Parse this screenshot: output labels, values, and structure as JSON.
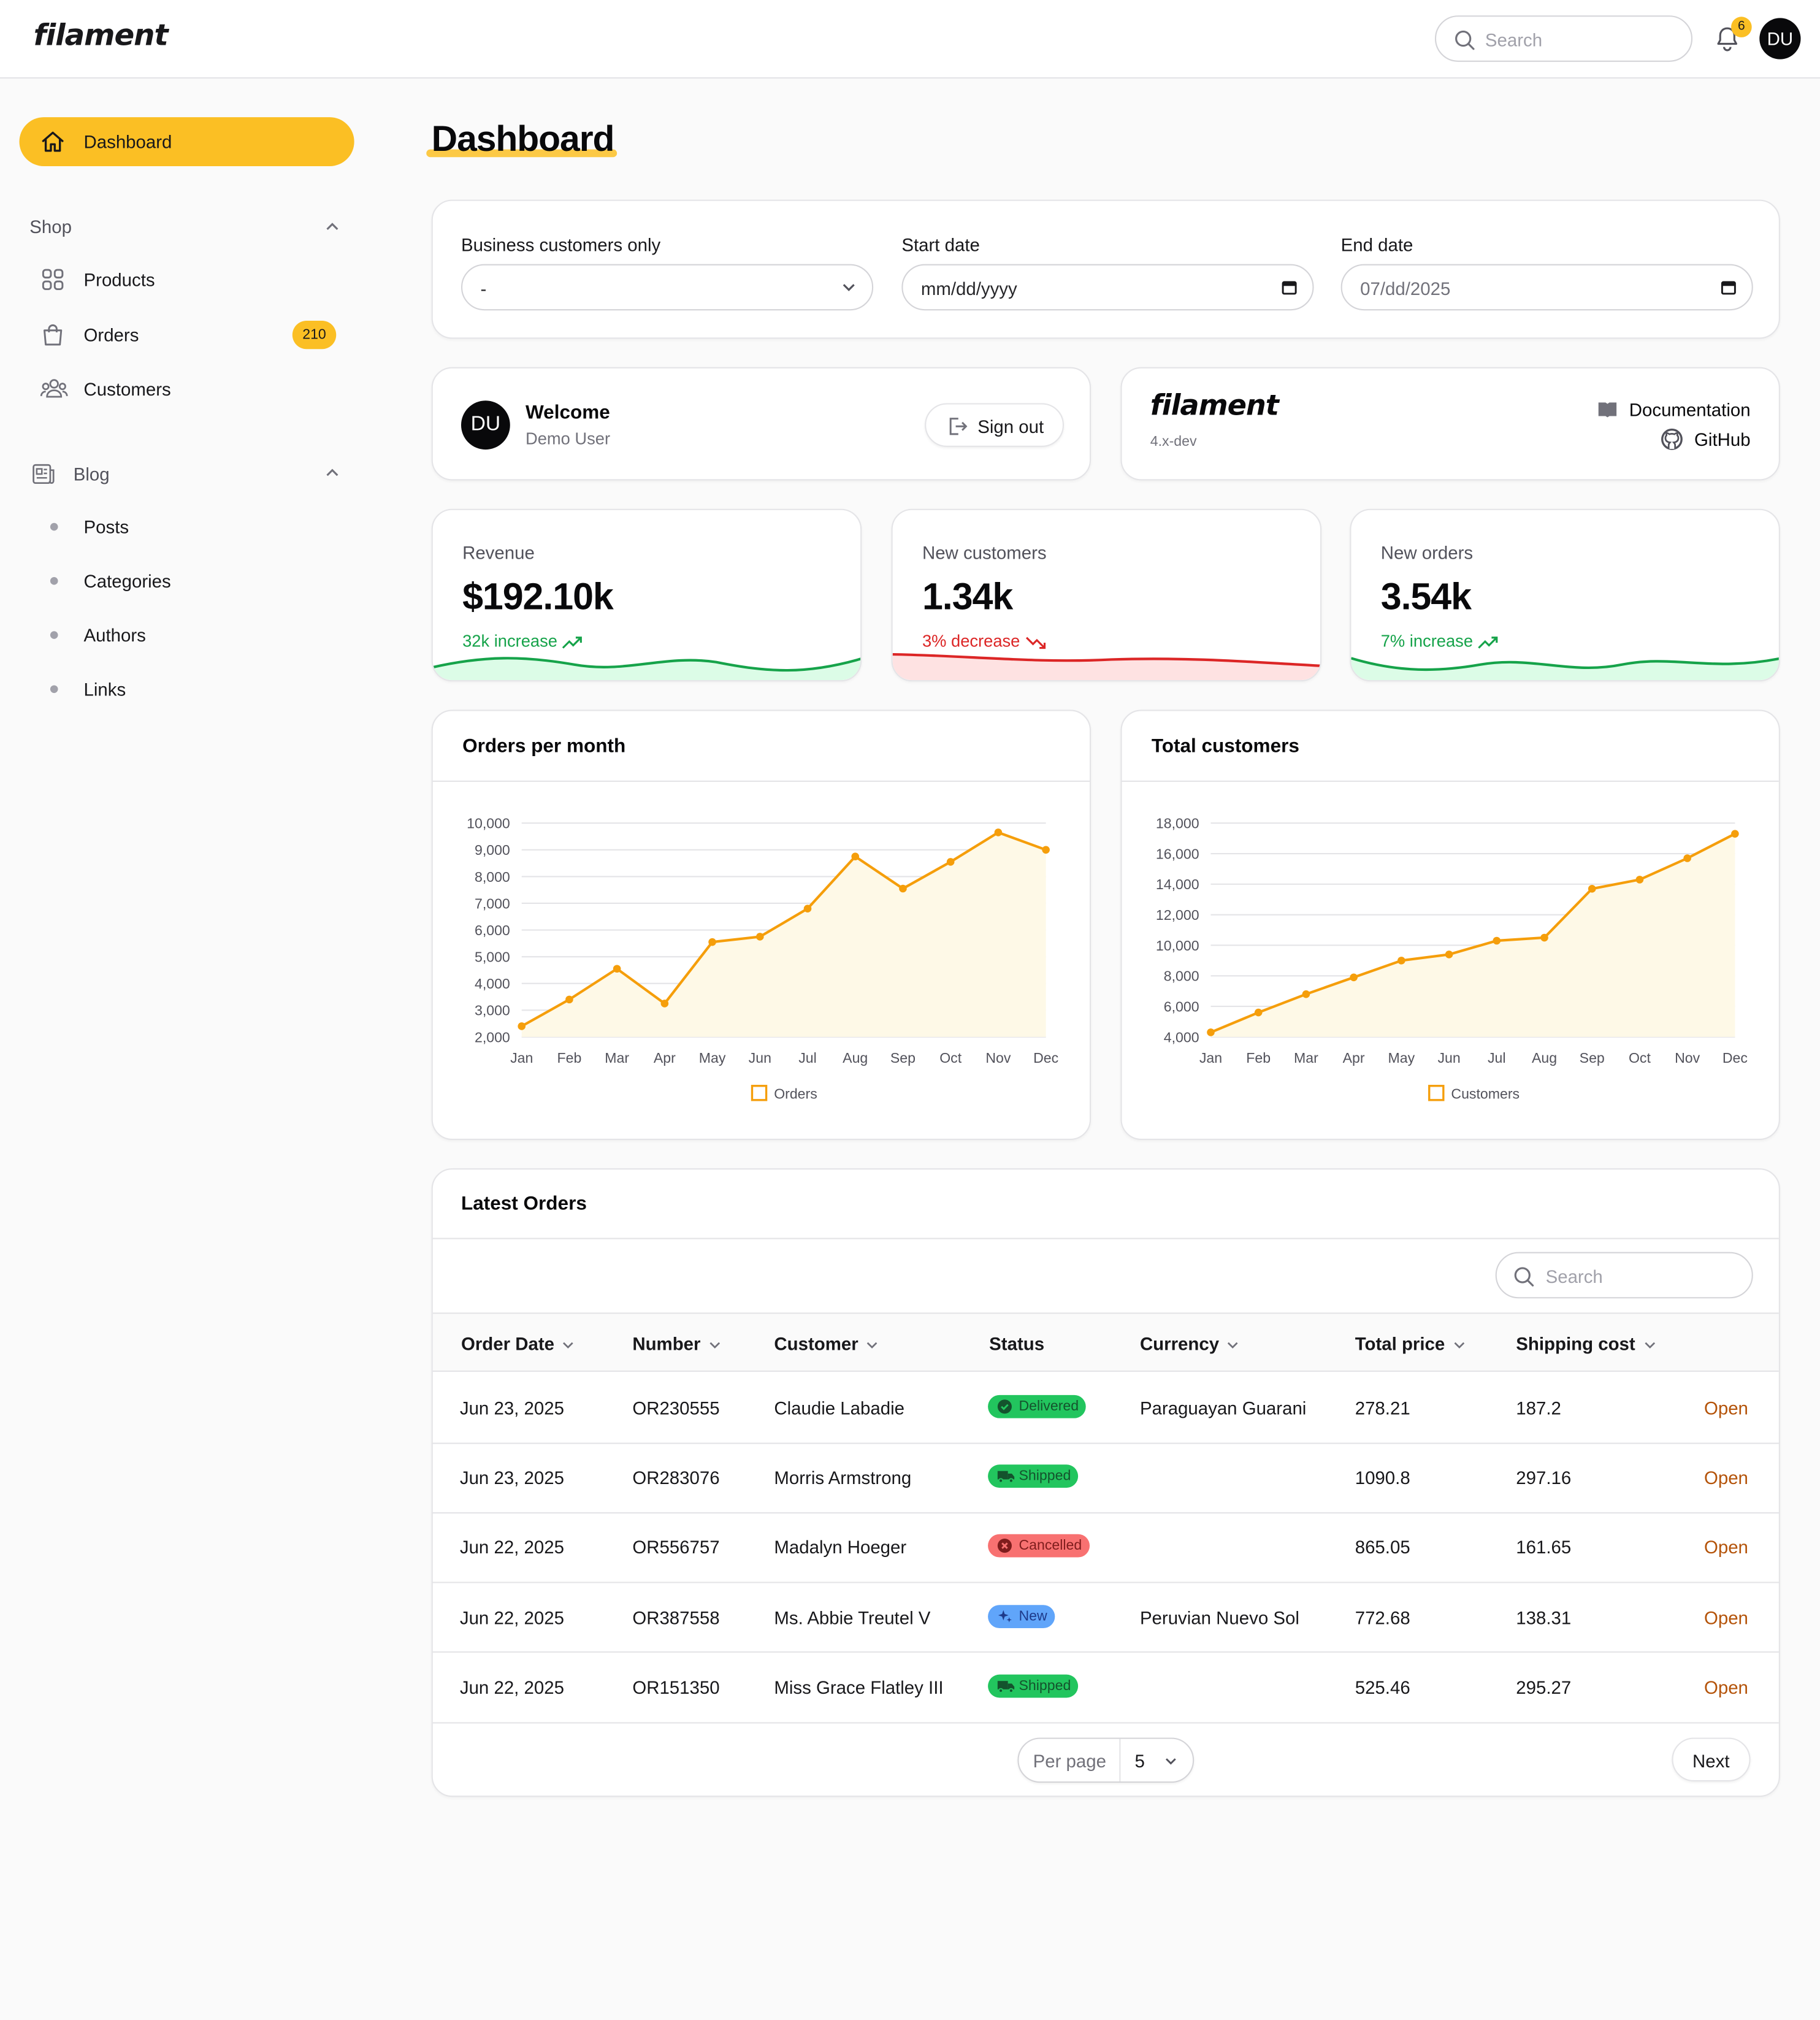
{
  "brand": {
    "logo_text": "filament"
  },
  "topbar": {
    "search_placeholder": "Search",
    "notification_count": "6",
    "avatar_initials": "DU"
  },
  "sidebar": {
    "dashboard_label": "Dashboard",
    "groups": [
      {
        "label": "Shop",
        "items": [
          {
            "label": "Products",
            "icon": "squares-icon"
          },
          {
            "label": "Orders",
            "icon": "shopping-bag-icon",
            "badge": "210"
          },
          {
            "label": "Customers",
            "icon": "users-icon"
          }
        ]
      },
      {
        "label": "Blog",
        "icon": "newspaper-icon",
        "items": [
          {
            "label": "Posts"
          },
          {
            "label": "Categories"
          },
          {
            "label": "Authors"
          },
          {
            "label": "Links"
          }
        ]
      }
    ]
  },
  "page": {
    "title": "Dashboard"
  },
  "filters": {
    "business_label": "Business customers only",
    "business_value": "-",
    "start_label": "Start date",
    "start_value": "mm/dd/yyyy",
    "end_label": "End date",
    "end_value": "07/dd/2025"
  },
  "welcome": {
    "avatar_initials": "DU",
    "title": "Welcome",
    "user_name": "Demo User",
    "signout_label": "Sign out"
  },
  "info": {
    "logo_text": "filament",
    "version": "4.x-dev",
    "docs_label": "Documentation",
    "github_label": "GitHub"
  },
  "stats": [
    {
      "label": "Revenue",
      "value": "$192.10k",
      "trend": "32k increase",
      "direction": "up",
      "color": "#16a34a"
    },
    {
      "label": "New customers",
      "value": "1.34k",
      "trend": "3% decrease",
      "direction": "down",
      "color": "#dc2626"
    },
    {
      "label": "New orders",
      "value": "3.54k",
      "trend": "7% increase",
      "direction": "up",
      "color": "#16a34a"
    }
  ],
  "chart_data": [
    {
      "type": "line",
      "title": "Orders per month",
      "categories": [
        "Jan",
        "Feb",
        "Mar",
        "Apr",
        "May",
        "Jun",
        "Jul",
        "Aug",
        "Sep",
        "Oct",
        "Nov",
        "Dec"
      ],
      "series": [
        {
          "name": "Orders",
          "values": [
            2400,
            3400,
            4550,
            3250,
            5550,
            5750,
            6800,
            8750,
            7550,
            8550,
            9650,
            9000
          ]
        }
      ],
      "ylim": [
        2000,
        10000
      ],
      "yticks": [
        "10,000",
        "9,000",
        "8,000",
        "7,000",
        "6,000",
        "5,000",
        "4,000",
        "3,000",
        "2,000"
      ],
      "color": "#f59e0b",
      "fill": "area",
      "legend": "bottom"
    },
    {
      "type": "line",
      "title": "Total customers",
      "categories": [
        "Jan",
        "Feb",
        "Mar",
        "Apr",
        "May",
        "Jun",
        "Jul",
        "Aug",
        "Sep",
        "Oct",
        "Nov",
        "Dec"
      ],
      "series": [
        {
          "name": "Customers",
          "values": [
            4300,
            5600,
            6800,
            7900,
            9000,
            9400,
            10300,
            10500,
            13700,
            14300,
            15700,
            17300
          ]
        }
      ],
      "ylim": [
        4000,
        18000
      ],
      "yticks": [
        "18,000",
        "16,000",
        "14,000",
        "12,000",
        "10,000",
        "8,000",
        "6,000",
        "4,000"
      ],
      "color": "#f59e0b",
      "fill": "area",
      "legend": "bottom"
    }
  ],
  "orders": {
    "title": "Latest Orders",
    "search_placeholder": "Search",
    "columns": [
      "Order Date",
      "Number",
      "Customer",
      "Status",
      "Currency",
      "Total price",
      "Shipping cost"
    ],
    "rows": [
      {
        "date": "Jun 23, 2025",
        "number": "OR230555",
        "customer": "Claudie Labadie",
        "status": "Delivered",
        "currency": "Paraguayan Guarani",
        "total": "278.21",
        "shipping": "187.2",
        "action": "Open"
      },
      {
        "date": "Jun 23, 2025",
        "number": "OR283076",
        "customer": "Morris Armstrong",
        "status": "Shipped",
        "currency": "",
        "total": "1090.8",
        "shipping": "297.16",
        "action": "Open"
      },
      {
        "date": "Jun 22, 2025",
        "number": "OR556757",
        "customer": "Madalyn Hoeger",
        "status": "Cancelled",
        "currency": "",
        "total": "865.05",
        "shipping": "161.65",
        "action": "Open"
      },
      {
        "date": "Jun 22, 2025",
        "number": "OR387558",
        "customer": "Ms. Abbie Treutel V",
        "status": "New",
        "currency": "Peruvian Nuevo Sol",
        "total": "772.68",
        "shipping": "138.31",
        "action": "Open"
      },
      {
        "date": "Jun 22, 2025",
        "number": "OR151350",
        "customer": "Miss Grace Flatley III",
        "status": "Shipped",
        "currency": "",
        "total": "525.46",
        "shipping": "295.27",
        "action": "Open"
      }
    ],
    "per_page_label": "Per page",
    "per_page_value": "5",
    "next_label": "Next"
  },
  "status_colors": {
    "Delivered": "#22c55e",
    "Shipped": "#22c55e",
    "Cancelled": "#f87171",
    "New": "#60a5fa"
  }
}
